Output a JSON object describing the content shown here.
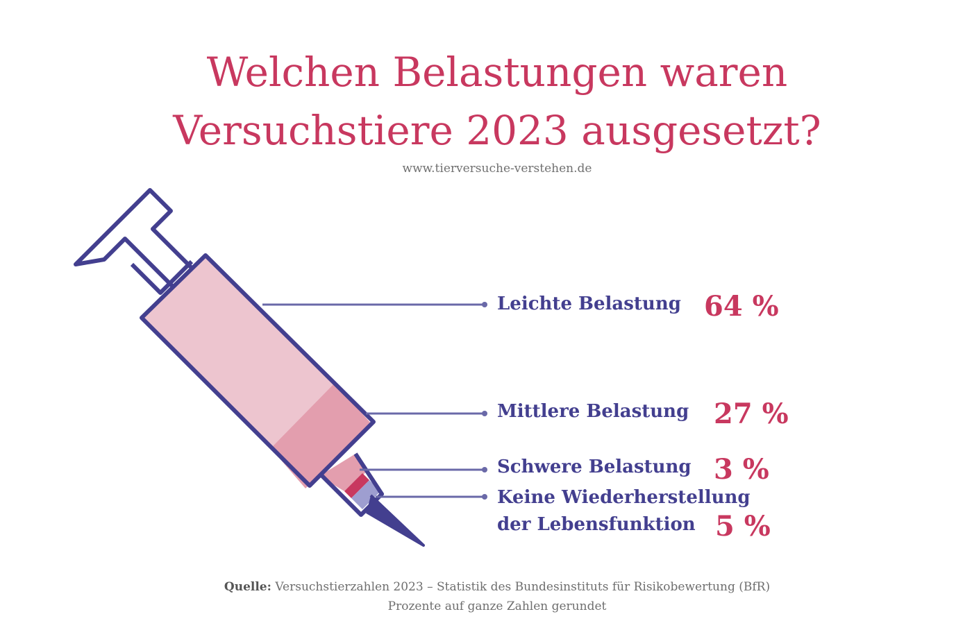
{
  "title_lines": [
    "Welchen Belastungen waren",
    "Versuchstiere 2023 ausgesetzt?"
  ],
  "subtitle": "www.tierversuche-verstehen.de",
  "colors": {
    "title": "#c8385f",
    "label": "#433f8f",
    "outline": "#433f8f",
    "leicht": "#edc5cf",
    "mittel": "#e39eae",
    "schwer": "#c8385f",
    "keine": "#9e9ed0"
  },
  "chart_data": {
    "type": "pie",
    "categories": [
      "Leichte Belastung",
      "Mittlere Belastung",
      "Schwere Belastung",
      "Keine Wiederherstellung der Lebensfunktion"
    ],
    "values": [
      64,
      27,
      3,
      5
    ],
    "unit": "%"
  },
  "labels": [
    {
      "text": "Leichte Belastung",
      "value": "64 %"
    },
    {
      "text": "Mittlere Belastung",
      "value": "27 %"
    },
    {
      "text": "Schwere Belastung",
      "value": "3 %"
    },
    {
      "text_lines": [
        "Keine Wiederherstellung",
        "der Lebensfunktion"
      ],
      "value": "5 %"
    }
  ],
  "source": {
    "prefix": "Quelle:",
    "text": "Versuchstierzahlen 2023 – Statistik des Bundesinstituts für Risikobewertung (BfR)",
    "note": "Prozente auf ganze Zahlen gerundet"
  }
}
